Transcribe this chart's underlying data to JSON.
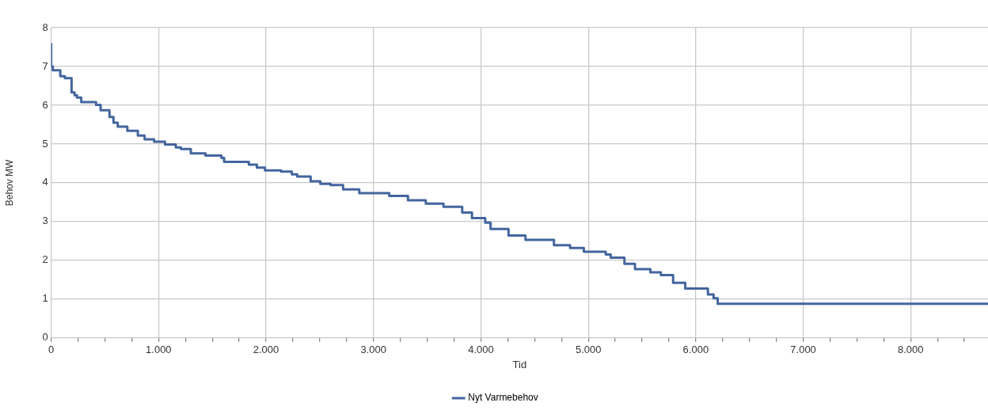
{
  "chart_data": {
    "type": "step",
    "xlabel": "Tid",
    "ylabel": "Behov MW",
    "legend": "bottom",
    "grid": true,
    "marker": "none",
    "xlim": [
      0,
      8720
    ],
    "ylim": [
      0,
      8
    ],
    "xticks": [
      0,
      {
        "value": 250,
        "label": null
      },
      {
        "value": 500,
        "label": null
      },
      {
        "value": 750,
        "label": null
      },
      {
        "value": 1000,
        "label": "1.000"
      },
      {
        "value": 1250,
        "label": null
      },
      {
        "value": 1500,
        "label": null
      },
      {
        "value": 1750,
        "label": null
      },
      {
        "value": 2000,
        "label": "2.000"
      },
      {
        "value": 2250,
        "label": null
      },
      {
        "value": 2500,
        "label": null
      },
      {
        "value": 2750,
        "label": null
      },
      {
        "value": 3000,
        "label": "3.000"
      },
      {
        "value": 3250,
        "label": null
      },
      {
        "value": 3500,
        "label": null
      },
      {
        "value": 3750,
        "label": null
      },
      {
        "value": 4000,
        "label": "4.000"
      },
      {
        "value": 4250,
        "label": null
      },
      {
        "value": 4500,
        "label": null
      },
      {
        "value": 4750,
        "label": null
      },
      {
        "value": 5000,
        "label": "5.000"
      },
      {
        "value": 5250,
        "label": null
      },
      {
        "value": 5500,
        "label": null
      },
      {
        "value": 5750,
        "label": null
      },
      {
        "value": 6000,
        "label": "6.000"
      },
      {
        "value": 6250,
        "label": null
      },
      {
        "value": 6500,
        "label": null
      },
      {
        "value": 6750,
        "label": null
      },
      {
        "value": 7000,
        "label": "7.000"
      },
      {
        "value": 7250,
        "label": null
      },
      {
        "value": 7500,
        "label": null
      },
      {
        "value": 7750,
        "label": null
      },
      {
        "value": 8000,
        "label": "8.000"
      },
      {
        "value": 8250,
        "label": null
      },
      {
        "value": 8500,
        "label": null
      }
    ],
    "yticks": [
      0,
      1,
      2,
      3,
      4,
      5,
      6,
      7,
      8
    ],
    "series": [
      {
        "name": "Nyt Varmebehov",
        "color": "#44659e",
        "x": [
          0,
          15,
          85,
          128,
          190,
          218,
          240,
          280,
          418,
          460,
          543,
          580,
          620,
          709,
          807,
          870,
          958,
          1060,
          1160,
          1208,
          1300,
          1436,
          1585,
          1610,
          1840,
          1915,
          1990,
          2140,
          2240,
          2290,
          2415,
          2505,
          2600,
          2717,
          2868,
          3147,
          3321,
          3487,
          3652,
          3826,
          3917,
          4040,
          4090,
          4257,
          4415,
          4680,
          4830,
          4958,
          5162,
          5208,
          5336,
          5434,
          5577,
          5675,
          5789,
          5902,
          6113,
          6166,
          6204,
          6330,
          8720
        ],
        "values": [
          7.6,
          7.0,
          6.9,
          6.75,
          6.7,
          6.33,
          6.26,
          6.2,
          6.08,
          6.01,
          5.87,
          5.7,
          5.55,
          5.45,
          5.34,
          5.22,
          5.12,
          5.06,
          4.99,
          4.91,
          4.87,
          4.76,
          4.7,
          4.64,
          4.54,
          4.47,
          4.39,
          4.32,
          4.29,
          4.22,
          4.16,
          4.04,
          3.97,
          3.94,
          3.83,
          3.73,
          3.66,
          3.55,
          3.46,
          3.38,
          3.23,
          3.09,
          2.97,
          2.81,
          2.64,
          2.53,
          2.39,
          2.32,
          2.22,
          2.15,
          2.07,
          1.91,
          1.77,
          1.69,
          1.62,
          1.42,
          1.27,
          1.12,
          1.02,
          0.88,
          0.88
        ]
      }
    ]
  }
}
